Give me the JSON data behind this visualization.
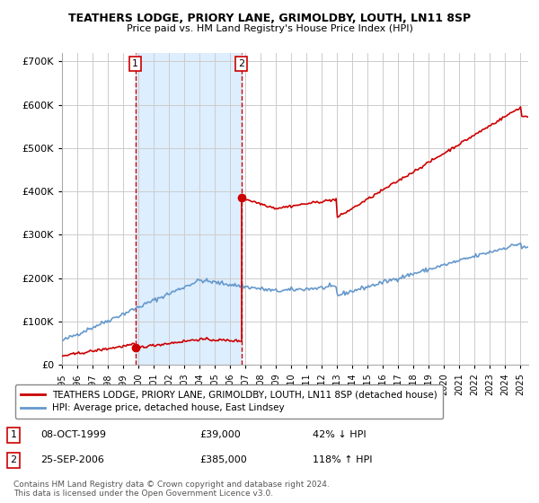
{
  "title": "TEATHERS LODGE, PRIORY LANE, GRIMOLDBY, LOUTH, LN11 8SP",
  "subtitle": "Price paid vs. HM Land Registry's House Price Index (HPI)",
  "legend_red": "TEATHERS LODGE, PRIORY LANE, GRIMOLDBY, LOUTH, LN11 8SP (detached house)",
  "legend_blue": "HPI: Average price, detached house, East Lindsey",
  "transaction1_date": "08-OCT-1999",
  "transaction1_price": 39000,
  "transaction1_hpi": "42% ↓ HPI",
  "transaction2_date": "25-SEP-2006",
  "transaction2_price": 385000,
  "transaction2_hpi": "118% ↑ HPI",
  "footer": "Contains HM Land Registry data © Crown copyright and database right 2024.\nThis data is licensed under the Open Government Licence v3.0.",
  "ylim": [
    0,
    720000
  ],
  "yticks": [
    0,
    100000,
    200000,
    300000,
    400000,
    500000,
    600000,
    700000
  ],
  "background_color": "#ffffff",
  "plot_bg_color": "#ffffff",
  "shaded_region_color": "#ddeeff",
  "grid_color": "#cccccc",
  "red_line_color": "#cc0000",
  "blue_line_color": "#6699cc",
  "vline_color": "#cc0000",
  "marker_color": "#cc0000",
  "transaction1_x": 1999.79,
  "transaction2_x": 2006.73,
  "xmin": 1995.0,
  "xmax": 2025.5
}
